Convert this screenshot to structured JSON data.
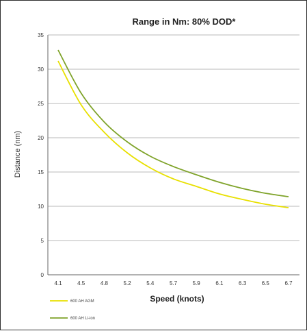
{
  "chart_data": {
    "type": "line",
    "title": "Range in Nm:  80% DOD*",
    "xlabel": "Speed (knots)",
    "ylabel": "Distance (nm)",
    "categories": [
      "4.1",
      "4.5",
      "4.8",
      "5.2",
      "5.4",
      "5.7",
      "5.9",
      "6.1",
      "6.3",
      "6.5",
      "6.7"
    ],
    "ylim": [
      0,
      35
    ],
    "yticks": [
      "0",
      "5",
      "10",
      "15",
      "20",
      "25",
      "30",
      "35"
    ],
    "grid": true,
    "legend_position": "bottom-left",
    "series": [
      {
        "name": "600 AH AGM",
        "color": "#e8e000",
        "values": [
          31.2,
          24.8,
          20.8,
          17.8,
          15.6,
          14.0,
          12.9,
          11.8,
          11.0,
          10.3,
          9.8
        ]
      },
      {
        "name": "600 AH Li-ion",
        "color": "#7fa32a",
        "values": [
          32.8,
          26.5,
          22.3,
          19.4,
          17.3,
          15.8,
          14.6,
          13.5,
          12.6,
          11.9,
          11.4
        ]
      }
    ]
  }
}
